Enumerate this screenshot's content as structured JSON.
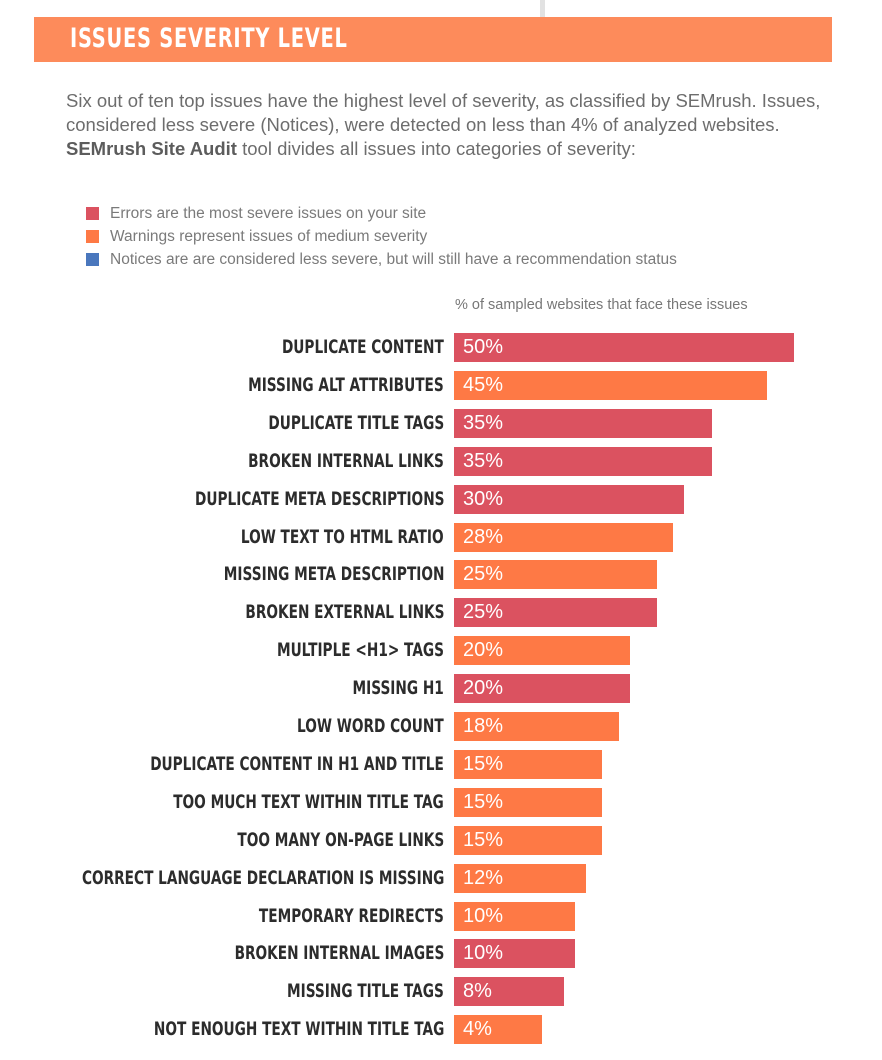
{
  "header": {
    "title": "ISSUES SEVERITY LEVEL"
  },
  "intro": {
    "part1": "Six out of ten top issues have the highest level of severity, as classified by SEMrush. Issues, considered less severe (Notices), were detected on less than 4% of analyzed websites. ",
    "bold": "SEMrush Site Audit",
    "part2": " tool divides all issues into categories of severity:"
  },
  "colors": {
    "error": "#db5260",
    "warning": "#fe7945",
    "notice": "#4a77bd",
    "header": "#fd8b5b"
  },
  "legend": [
    {
      "key": "error",
      "label": "Errors are the most severe issues on your site"
    },
    {
      "key": "warning",
      "label": "Warnings represent issues of medium severity"
    },
    {
      "key": "notice",
      "label": "Notices are are considered less severe, but will still have a recommendation status"
    }
  ],
  "chart_data": {
    "type": "bar",
    "orientation": "horizontal",
    "title": "ISSUES SEVERITY LEVEL",
    "xlabel": "% of sampled websites that face these issues",
    "ylabel": "",
    "value_unit": "%",
    "categories": [
      "DUPLICATE CONTENT",
      "MISSING ALT ATTRIBUTES",
      "DUPLICATE TITLE TAGS",
      "BROKEN INTERNAL LINKS",
      "DUPLICATE META DESCRIPTIONS",
      "LOW TEXT TO HTML RATIO",
      "MISSING META DESCRIPTION",
      "BROKEN EXTERNAL LINKS",
      "MULTIPLE <H1> TAGS",
      "MISSING H1",
      "LOW WORD COUNT",
      "DUPLICATE CONTENT IN H1 AND TITLE",
      "TOO MUCH TEXT WITHIN TITLE TAG",
      "TOO MANY ON-PAGE LINKS",
      "CORRECT LANGUAGE DECLARATION IS MISSING",
      "TEMPORARY REDIRECTS",
      "BROKEN INTERNAL IMAGES",
      "MISSING TITLE TAGS",
      "NOT ENOUGH TEXT WITHIN TITLE TAG"
    ],
    "values": [
      50,
      45,
      35,
      35,
      30,
      28,
      25,
      25,
      20,
      20,
      18,
      15,
      15,
      15,
      12,
      10,
      10,
      8,
      4
    ],
    "severity": [
      "error",
      "warning",
      "error",
      "error",
      "error",
      "warning",
      "warning",
      "error",
      "warning",
      "error",
      "warning",
      "warning",
      "warning",
      "warning",
      "warning",
      "warning",
      "error",
      "error",
      "warning"
    ],
    "legend": [
      "Errors",
      "Warnings",
      "Notices"
    ],
    "legend_position": "top-left",
    "grid": false
  }
}
